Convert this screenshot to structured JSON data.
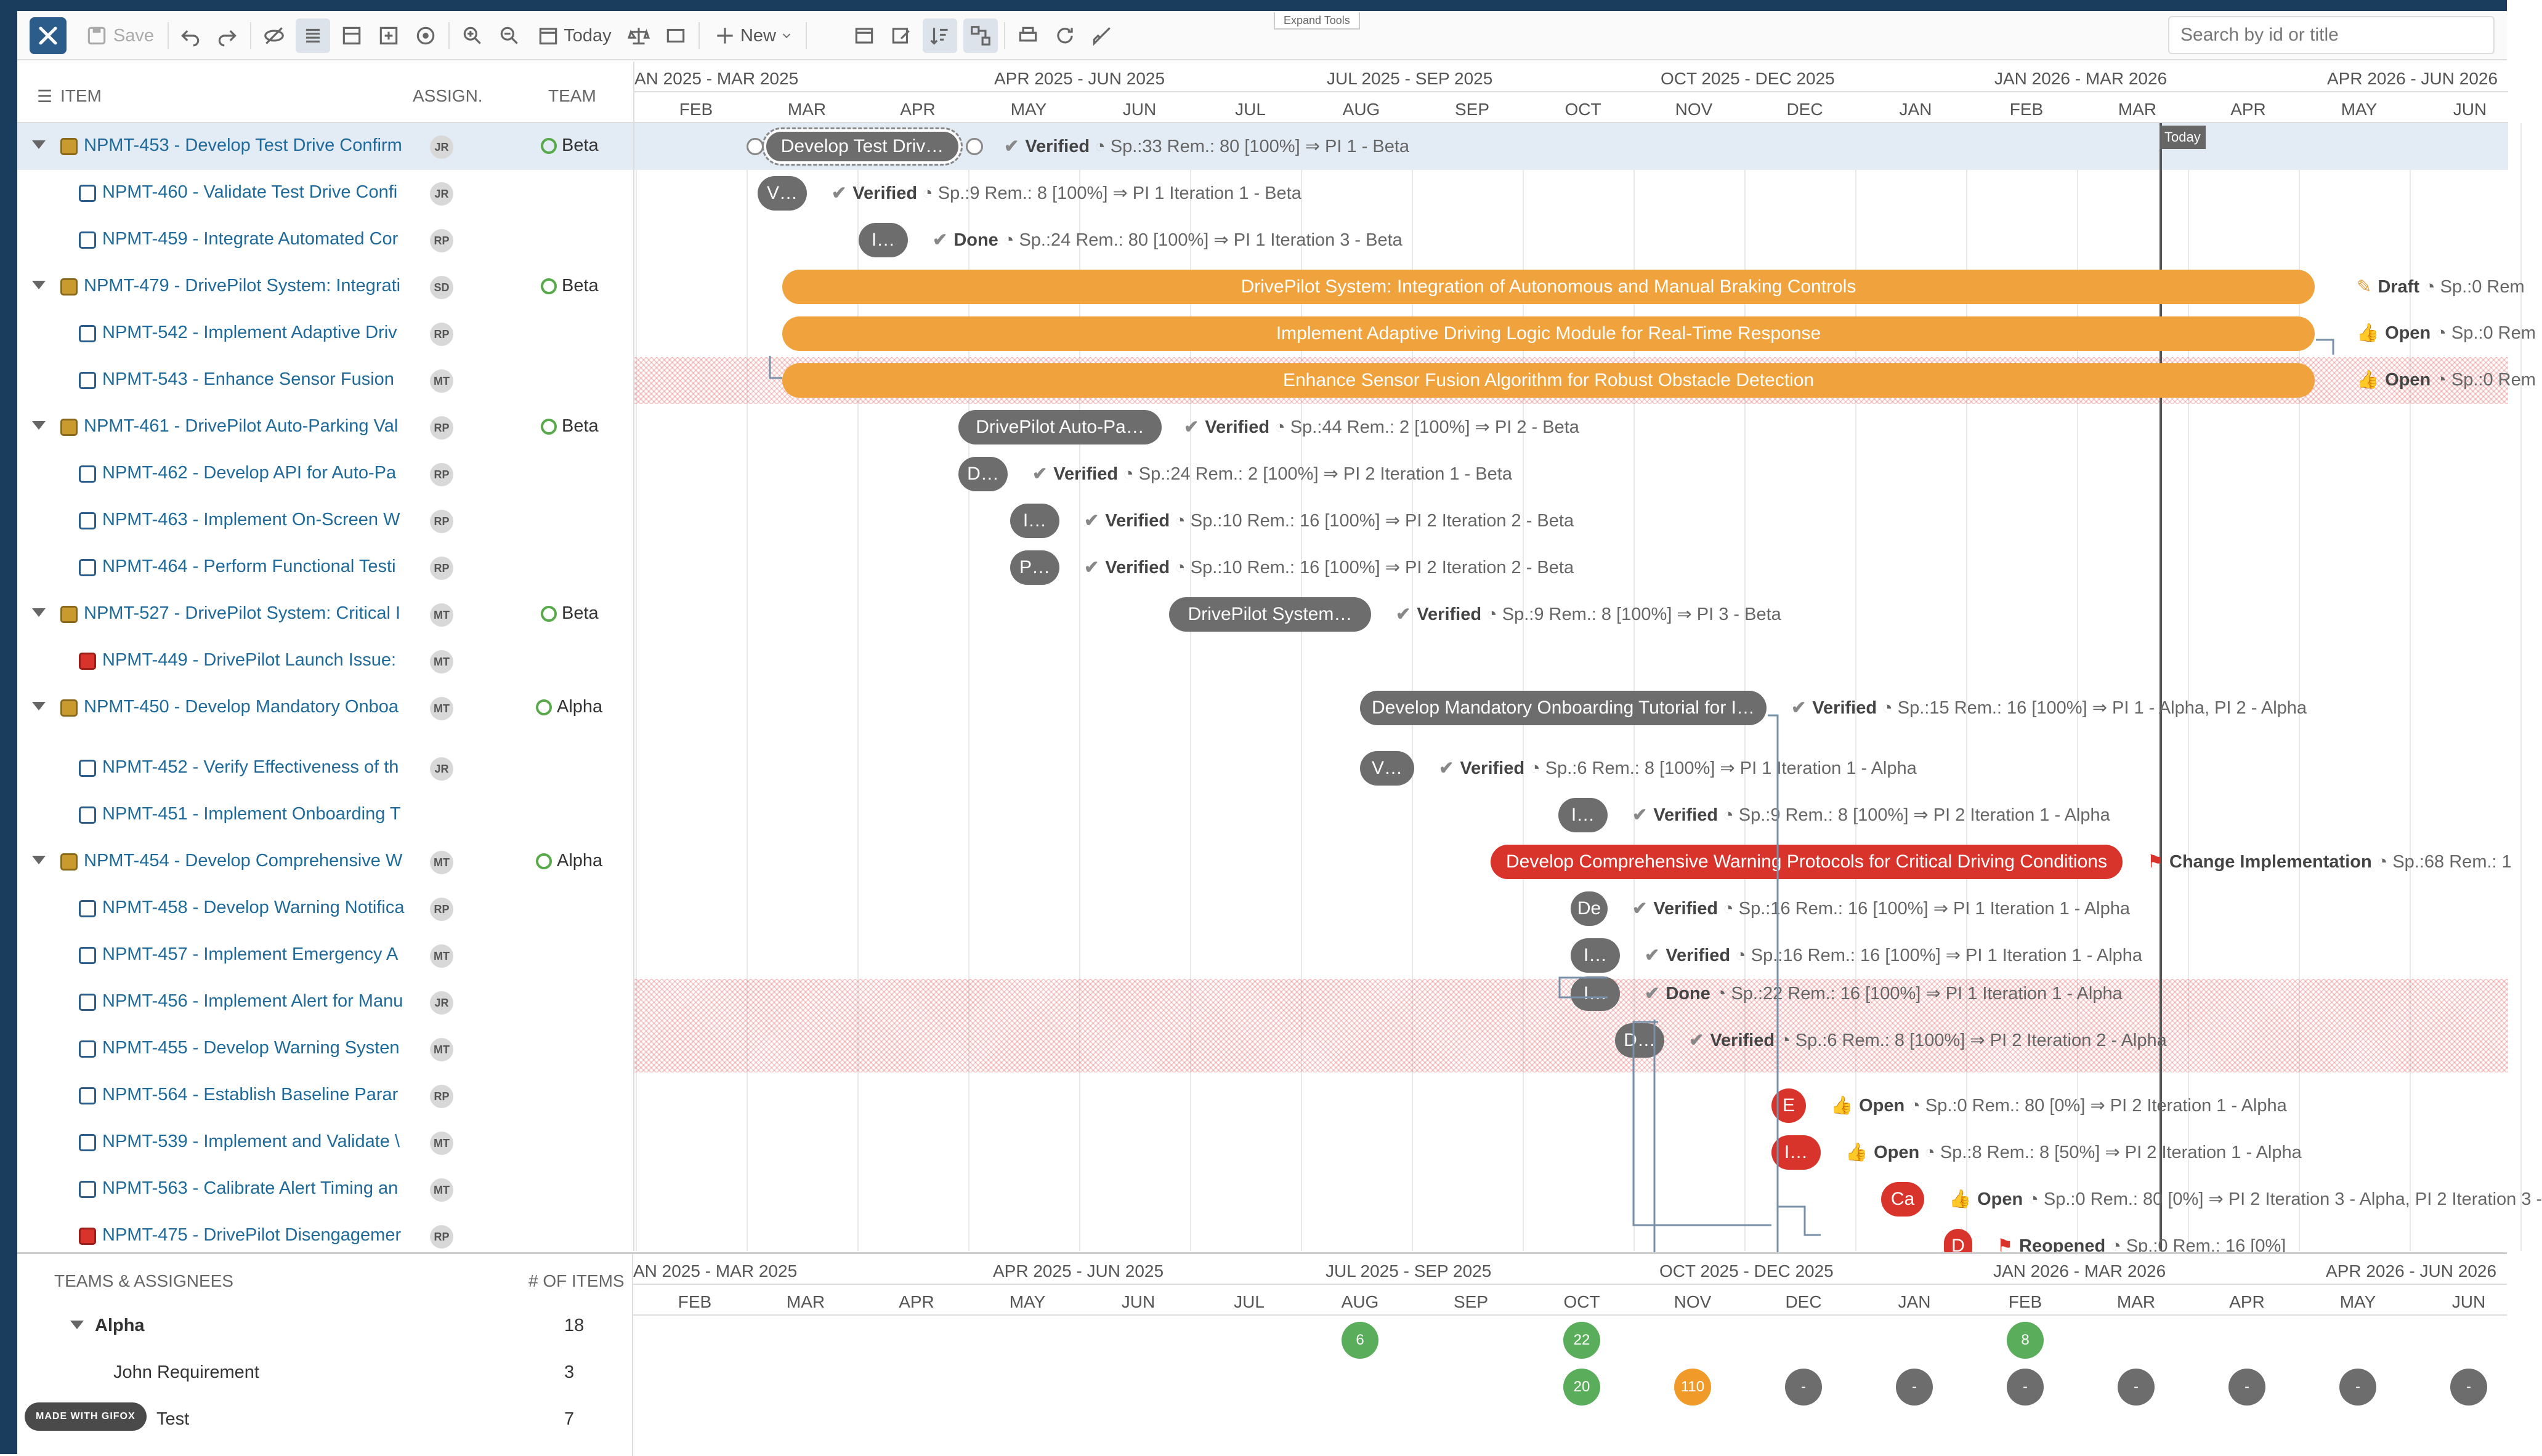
{
  "toolbar": {
    "save_label": "Save",
    "today_label": "Today",
    "new_label": "New",
    "expand_tools": "Expand Tools",
    "search_placeholder": "Search by id or title"
  },
  "grid": {
    "header_item": "ITEM",
    "header_assign": "ASSIGN.",
    "header_team": "TEAM",
    "rows": [
      {
        "label": "NPMT-453 - Develop Test Drive Confirm",
        "assignee": "JR",
        "team": "Beta"
      },
      {
        "label": "NPMT-460 - Validate Test Drive Confi",
        "assignee": "JR",
        "team": ""
      },
      {
        "label": "NPMT-459 - Integrate Automated Cor",
        "assignee": "RP",
        "team": ""
      },
      {
        "label": "NPMT-479 - DrivePilot System: Integrati",
        "assignee": "SD",
        "team": "Beta"
      },
      {
        "label": "NPMT-542 - Implement Adaptive Driv",
        "assignee": "RP",
        "team": ""
      },
      {
        "label": "NPMT-543 - Enhance Sensor Fusion",
        "assignee": "MT",
        "team": ""
      },
      {
        "label": "NPMT-461 - DrivePilot Auto-Parking Val",
        "assignee": "RP",
        "team": "Beta"
      },
      {
        "label": "NPMT-462 - Develop API for Auto-Pa",
        "assignee": "RP",
        "team": ""
      },
      {
        "label": "NPMT-463 - Implement On-Screen W",
        "assignee": "RP",
        "team": ""
      },
      {
        "label": "NPMT-464 - Perform Functional Testi",
        "assignee": "RP",
        "team": ""
      },
      {
        "label": "NPMT-527 - DrivePilot System: Critical I",
        "assignee": "MT",
        "team": "Beta"
      },
      {
        "label": "NPMT-449 - DrivePilot Launch Issue:",
        "assignee": "MT",
        "team": ""
      },
      {
        "label": "NPMT-450 - Develop Mandatory Onboa",
        "assignee": "MT",
        "team": "Alpha"
      },
      {
        "label": "NPMT-452 - Verify Effectiveness of th",
        "assignee": "JR",
        "team": ""
      },
      {
        "label": "NPMT-451 - Implement Onboarding T",
        "assignee": "",
        "team": ""
      },
      {
        "label": "NPMT-454 - Develop Comprehensive W",
        "assignee": "MT",
        "team": "Alpha"
      },
      {
        "label": "NPMT-458 - Develop Warning Notifica",
        "assignee": "RP",
        "team": ""
      },
      {
        "label": "NPMT-457 - Implement Emergency A",
        "assignee": "MT",
        "team": ""
      },
      {
        "label": "NPMT-456 - Implement Alert for Manu",
        "assignee": "JR",
        "team": ""
      },
      {
        "label": "NPMT-455 - Develop Warning Systen",
        "assignee": "MT",
        "team": ""
      },
      {
        "label": "NPMT-564 - Establish Baseline Parar",
        "assignee": "RP",
        "team": ""
      },
      {
        "label": "NPMT-539 - Implement and Validate \\",
        "assignee": "MT",
        "team": ""
      },
      {
        "label": "NPMT-563 - Calibrate Alert Timing an",
        "assignee": "MT",
        "team": ""
      },
      {
        "label": "NPMT-475 - DrivePilot Disengagemer",
        "assignee": "RP",
        "team": ""
      }
    ]
  },
  "timeline": {
    "quarters": [
      "AN 2025 - MAR 2025",
      "APR 2025 - JUN 2025",
      "JUL 2025 - SEP 2025",
      "OCT 2025 - DEC 2025",
      "JAN 2026 - MAR 2026",
      "APR 2026 - JUN 2026"
    ],
    "months": [
      "FEB",
      "MAR",
      "APR",
      "MAY",
      "JUN",
      "JUL",
      "AUG",
      "SEP",
      "OCT",
      "NOV",
      "DEC",
      "JAN",
      "FEB",
      "MAR",
      "APR",
      "MAY",
      "JUN"
    ],
    "today_label": "Today",
    "bars": [
      {
        "text": "Develop Test Driv…",
        "status_label": "Verified",
        "status_rest": "Sp.:33 Rem.: 80 [100%] ⇒ PI 1 - Beta"
      },
      {
        "text": "V…",
        "status_label": "Verified",
        "status_rest": "Sp.:9 Rem.: 8 [100%] ⇒ PI 1 Iteration 1 - Beta"
      },
      {
        "text": "I…",
        "status_label": "Done",
        "status_rest": "Sp.:24 Rem.: 80 [100%] ⇒ PI 1 Iteration 3 - Beta"
      },
      {
        "text": "DrivePilot System: Integration of Autonomous and Manual Braking Controls",
        "status_label": "Draft",
        "status_rest": "Sp.:0 Rem"
      },
      {
        "text": "Implement Adaptive Driving Logic Module for Real-Time Response",
        "status_label": "Open",
        "status_rest": "Sp.:0 Rem"
      },
      {
        "text": "Enhance Sensor Fusion Algorithm for Robust Obstacle Detection",
        "status_label": "Open",
        "status_rest": "Sp.:0 Rem"
      },
      {
        "text": "DrivePilot Auto-Pa…",
        "status_label": "Verified",
        "status_rest": "Sp.:44 Rem.: 2 [100%] ⇒ PI 2 - Beta"
      },
      {
        "text": "D…",
        "status_label": "Verified",
        "status_rest": "Sp.:24 Rem.: 2 [100%] ⇒ PI 2 Iteration 1 - Beta"
      },
      {
        "text": "I…",
        "status_label": "Verified",
        "status_rest": "Sp.:10 Rem.: 16 [100%] ⇒ PI 2 Iteration 2 - Beta"
      },
      {
        "text": "P…",
        "status_label": "Verified",
        "status_rest": "Sp.:10 Rem.: 16 [100%] ⇒ PI 2 Iteration 2 - Beta"
      },
      {
        "text": "DrivePilot System…",
        "status_label": "Verified",
        "status_rest": "Sp.:9 Rem.: 8 [100%] ⇒ PI 3 - Beta"
      },
      {
        "text": "",
        "status_label": "",
        "status_rest": ""
      },
      {
        "text": "Develop Mandatory Onboarding Tutorial for I…",
        "status_label": "Verified",
        "status_rest": "Sp.:15 Rem.: 16 [100%] ⇒ PI 1 - Alpha, PI 2 - Alpha"
      },
      {
        "text": "V…",
        "status_label": "Verified",
        "status_rest": "Sp.:6 Rem.: 8 [100%] ⇒ PI 1 Iteration 1 - Alpha"
      },
      {
        "text": "I…",
        "status_label": "Verified",
        "status_rest": "Sp.:9 Rem.: 8 [100%] ⇒ PI 2 Iteration 1 - Alpha"
      },
      {
        "text": "Develop Comprehensive Warning Protocols for Critical Driving Conditions",
        "status_label": "Change Implementation",
        "status_rest": "Sp.:68 Rem.: 1"
      },
      {
        "text": "De",
        "status_label": "Verified",
        "status_rest": "Sp.:16 Rem.: 16 [100%] ⇒ PI 1 Iteration 1 - Alpha"
      },
      {
        "text": "I…",
        "status_label": "Verified",
        "status_rest": "Sp.:16 Rem.: 16 [100%] ⇒ PI 1 Iteration 1 - Alpha"
      },
      {
        "text": "I…",
        "status_label": "Done",
        "status_rest": "Sp.:22 Rem.: 16 [100%] ⇒ PI 1 Iteration 1 - Alpha"
      },
      {
        "text": "D…",
        "status_label": "Verified",
        "status_rest": "Sp.:6 Rem.: 8 [100%] ⇒ PI 2 Iteration 2 - Alpha"
      },
      {
        "text": "E",
        "status_label": "Open",
        "status_rest": "Sp.:0 Rem.: 80 [0%] ⇒ PI 2 Iteration 1 - Alpha"
      },
      {
        "text": "I…",
        "status_label": "Open",
        "status_rest": "Sp.:8 Rem.: 8 [50%] ⇒ PI 2 Iteration 1 - Alpha"
      },
      {
        "text": "Ca",
        "status_label": "Open",
        "status_rest": "Sp.:0 Rem.: 80 [0%] ⇒ PI 2 Iteration 3 - Alpha, PI 2 Iteration 3 -"
      },
      {
        "text": "D",
        "status_label": "Reopened",
        "status_rest": "Sp.:0 Rem.: 16 [0%]"
      }
    ]
  },
  "bottom": {
    "header_teams": "TEAMS & ASSIGNEES",
    "header_count": "# OF ITEMS",
    "rows": [
      {
        "name": "Alpha",
        "count": "18"
      },
      {
        "name": "John Requirement",
        "count": "3"
      },
      {
        "name": "Test",
        "count": "7"
      }
    ],
    "dots_row1": [
      "6",
      "22",
      "8"
    ],
    "dots_row2": [
      "20",
      "110",
      "-",
      "-",
      "-",
      "-",
      "-",
      "-",
      "-"
    ]
  },
  "badge": "MADE WITH GIFOX"
}
